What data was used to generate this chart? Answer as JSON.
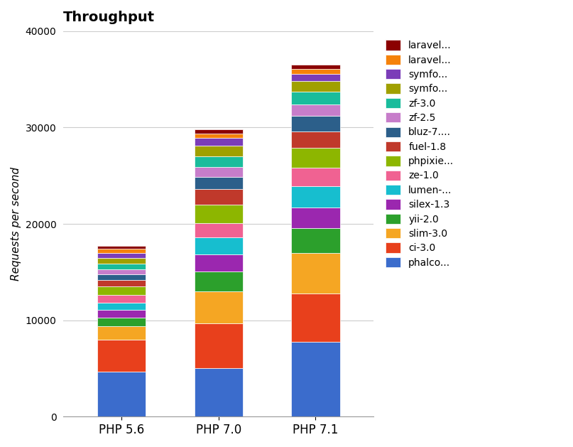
{
  "title": "Throughput",
  "ylabel": "Requests per second",
  "categories": [
    "PHP 5.6",
    "PHP 7.0",
    "PHP 7.1"
  ],
  "frameworks": [
    "phalco...",
    "ci-3.0",
    "slim-3.0",
    "yii-2.0",
    "silex-1.3",
    "lumen-...",
    "ze-1.0",
    "phpixie...",
    "fuel-1.8",
    "bluz-7....",
    "zf-2.5",
    "zf-3.0",
    "symfo...",
    "symfo...",
    "laravel...",
    "laravel..."
  ],
  "colors": [
    "#3b6ccc",
    "#e8401c",
    "#f5a623",
    "#2ca02c",
    "#9b27af",
    "#17becf",
    "#f06292",
    "#8db600",
    "#c0392b",
    "#2c5f8a",
    "#c77dca",
    "#1abc9c",
    "#a0a000",
    "#7b3db8",
    "#f5820a",
    "#8b0000"
  ],
  "values": {
    "PHP 5.6": [
      4700,
      3300,
      1400,
      900,
      800,
      700,
      800,
      900,
      700,
      600,
      500,
      600,
      600,
      500,
      400,
      300
    ],
    "PHP 7.0": [
      5000,
      4700,
      3300,
      2100,
      1700,
      1800,
      1500,
      1900,
      1600,
      1300,
      1000,
      1100,
      1100,
      800,
      500,
      400
    ],
    "PHP 7.1": [
      7800,
      5000,
      4200,
      2600,
      2100,
      2200,
      1900,
      2100,
      1700,
      1600,
      1200,
      1300,
      1100,
      800,
      500,
      400
    ]
  },
  "ylim": [
    0,
    40000
  ],
  "yticks": [
    0,
    10000,
    20000,
    30000,
    40000
  ],
  "bar_width": 0.5,
  "figsize": [
    8.07,
    6.29
  ],
  "dpi": 100,
  "background_color": "#ffffff",
  "grid_color": "#cccccc",
  "title_fontsize": 14,
  "axis_label_fontsize": 11
}
